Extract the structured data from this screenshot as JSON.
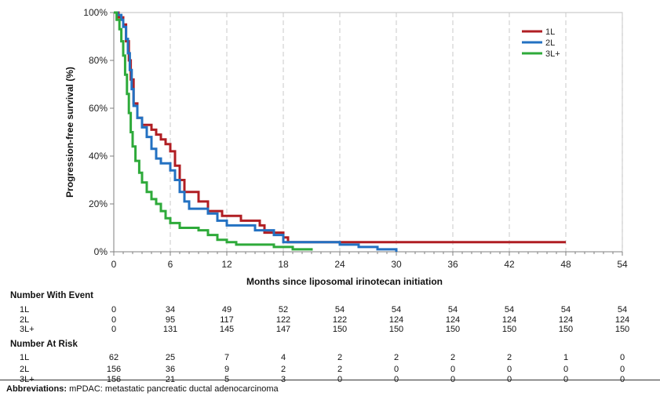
{
  "chart_data": {
    "type": "line",
    "title": "",
    "xlabel": "Months since liposomal irinotecan initiation",
    "ylabel": "Progression-free survival (%)",
    "xlim": [
      0,
      54
    ],
    "ylim": [
      0,
      100
    ],
    "x_ticks": [
      0,
      6,
      12,
      18,
      24,
      30,
      36,
      42,
      48,
      54
    ],
    "y_ticks": [
      0,
      20,
      40,
      60,
      80,
      100
    ],
    "y_tick_labels": [
      "0%",
      "20%",
      "40%",
      "60%",
      "80%",
      "100%"
    ],
    "grid": "vertical dashed",
    "legend_position": "top-right",
    "series": [
      {
        "name": "1L",
        "color": "#b01e23",
        "points": [
          [
            0,
            100
          ],
          [
            0.5,
            98
          ],
          [
            1,
            95
          ],
          [
            1.3,
            88
          ],
          [
            1.6,
            80
          ],
          [
            1.8,
            72
          ],
          [
            2.1,
            62
          ],
          [
            2.5,
            56
          ],
          [
            3,
            53
          ],
          [
            4,
            51
          ],
          [
            4.5,
            49
          ],
          [
            5,
            47
          ],
          [
            5.5,
            45
          ],
          [
            6,
            42
          ],
          [
            6.5,
            36
          ],
          [
            7,
            30
          ],
          [
            7.5,
            25
          ],
          [
            9,
            21
          ],
          [
            10,
            17
          ],
          [
            11.5,
            15
          ],
          [
            13.5,
            13
          ],
          [
            15.5,
            11
          ],
          [
            16,
            8
          ],
          [
            18,
            6
          ],
          [
            18.5,
            4
          ],
          [
            48,
            4
          ]
        ]
      },
      {
        "name": "2L",
        "color": "#2371c2",
        "points": [
          [
            0,
            100
          ],
          [
            0.4,
            99
          ],
          [
            0.8,
            97
          ],
          [
            1,
            94
          ],
          [
            1.3,
            89
          ],
          [
            1.5,
            83
          ],
          [
            1.7,
            76
          ],
          [
            1.9,
            68
          ],
          [
            2.1,
            61
          ],
          [
            2.5,
            56
          ],
          [
            3,
            52
          ],
          [
            3.5,
            48
          ],
          [
            4,
            43
          ],
          [
            4.5,
            39
          ],
          [
            5,
            37
          ],
          [
            6,
            34
          ],
          [
            6.5,
            30
          ],
          [
            7,
            25
          ],
          [
            7.5,
            21
          ],
          [
            8,
            18
          ],
          [
            10,
            16
          ],
          [
            11,
            13
          ],
          [
            12,
            11
          ],
          [
            15,
            9
          ],
          [
            17,
            7
          ],
          [
            18,
            4
          ],
          [
            24,
            3
          ],
          [
            26,
            2
          ],
          [
            28,
            1
          ],
          [
            30,
            0
          ]
        ]
      },
      {
        "name": "3L+",
        "color": "#2eaa3a",
        "points": [
          [
            0,
            100
          ],
          [
            0.3,
            97
          ],
          [
            0.6,
            93
          ],
          [
            0.8,
            88
          ],
          [
            1,
            82
          ],
          [
            1.2,
            74
          ],
          [
            1.4,
            66
          ],
          [
            1.6,
            58
          ],
          [
            1.8,
            50
          ],
          [
            2,
            44
          ],
          [
            2.3,
            38
          ],
          [
            2.7,
            33
          ],
          [
            3,
            29
          ],
          [
            3.5,
            25
          ],
          [
            4,
            22
          ],
          [
            4.5,
            20
          ],
          [
            5,
            17
          ],
          [
            5.5,
            14
          ],
          [
            6,
            12
          ],
          [
            7,
            10
          ],
          [
            9,
            9
          ],
          [
            10,
            7
          ],
          [
            11,
            5
          ],
          [
            12,
            4
          ],
          [
            13,
            3
          ],
          [
            15,
            3
          ],
          [
            17,
            2
          ],
          [
            19,
            1
          ],
          [
            21,
            0.5
          ]
        ]
      }
    ]
  },
  "table": {
    "columns_x": [
      0,
      6,
      12,
      18,
      24,
      30,
      36,
      42,
      48,
      54
    ],
    "event_title": "Number With Event",
    "event_rows": [
      {
        "label": "1L",
        "values": [
          "0",
          "34",
          "49",
          "52",
          "54",
          "54",
          "54",
          "54",
          "54",
          "54"
        ]
      },
      {
        "label": "2L",
        "values": [
          "0",
          "95",
          "117",
          "122",
          "122",
          "124",
          "124",
          "124",
          "124",
          "124"
        ]
      },
      {
        "label": "3L+",
        "values": [
          "0",
          "131",
          "145",
          "147",
          "150",
          "150",
          "150",
          "150",
          "150",
          "150"
        ]
      }
    ],
    "risk_title": "Number At Risk",
    "risk_rows": [
      {
        "label": "1L",
        "values": [
          "62",
          "25",
          "7",
          "4",
          "2",
          "2",
          "2",
          "2",
          "1",
          "0"
        ]
      },
      {
        "label": "2L",
        "values": [
          "156",
          "36",
          "9",
          "2",
          "2",
          "0",
          "0",
          "0",
          "0",
          "0"
        ]
      },
      {
        "label": "3L+",
        "values": [
          "156",
          "21",
          "5",
          "3",
          "0",
          "0",
          "0",
          "0",
          "0",
          "0"
        ]
      }
    ]
  },
  "footnote": {
    "label": "Abbreviations:",
    "text": " mPDAC: metastatic pancreatic ductal adenocarcinoma"
  }
}
